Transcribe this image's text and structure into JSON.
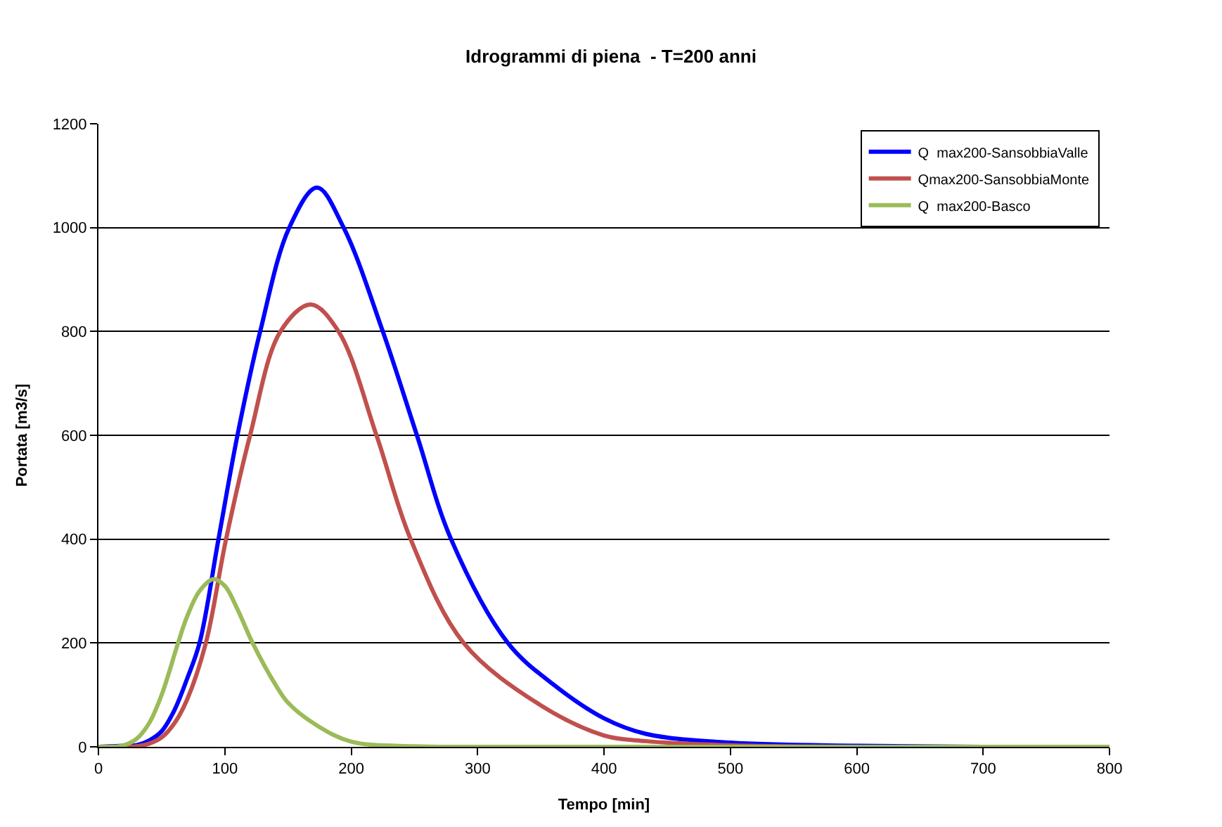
{
  "chart_data": {
    "type": "line",
    "title": "Idrogrammi di piena  - T=200 anni",
    "xlabel": "Tempo [min]",
    "ylabel": "Portata [m3/s]",
    "xlim": [
      0,
      800
    ],
    "xticks": [
      0,
      100,
      200,
      300,
      400,
      500,
      600,
      700,
      800
    ],
    "ylim": [
      0,
      1200
    ],
    "yticks": [
      0,
      200,
      400,
      600,
      800,
      1000,
      1200
    ],
    "grid": "y",
    "legend": "top right",
    "line_style": "solid",
    "marker": "none",
    "series": [
      {
        "name": "Q  max200-SansobbiaValle",
        "color": "#0000ff",
        "x": [
          0,
          20,
          30,
          40,
          50,
          60,
          70,
          80,
          95,
          110,
          128,
          151,
          173,
          194,
          225,
          252,
          279,
          324,
          360,
          400,
          433,
          500,
          600,
          700,
          800
        ],
        "values": [
          0,
          2,
          3,
          12,
          30,
          70,
          130,
          200,
          400,
          600,
          800,
          1000,
          1077,
          1000,
          800,
          600,
          400,
          200,
          120,
          55,
          25,
          8,
          2,
          0,
          0
        ]
      },
      {
        "name": "Qmax200-SansobbiaMonte",
        "color": "#c0504d",
        "x": [
          0,
          20,
          30,
          40,
          50,
          60,
          70,
          85,
          101,
          120,
          144,
          168,
          190,
          220,
          247,
          289,
          350,
          400,
          433,
          500,
          600
        ],
        "values": [
          0,
          0,
          1,
          6,
          18,
          45,
          90,
          200,
          400,
          600,
          800,
          852,
          800,
          600,
          400,
          200,
          80,
          22,
          11,
          3,
          0
        ]
      },
      {
        "name": "Q  max200-Basco",
        "color": "#9bbb59",
        "x": [
          0,
          10,
          20,
          30,
          40,
          50,
          63,
          70,
          80,
          91,
          100,
          110,
          122,
          140,
          150,
          173,
          200,
          250,
          300,
          400,
          500,
          600,
          700,
          800
        ],
        "values": [
          0,
          0,
          3,
          15,
          45,
          100,
          200,
          250,
          300,
          323,
          310,
          265,
          200,
          120,
          85,
          41,
          10,
          1,
          0,
          0,
          0,
          0,
          0,
          0
        ]
      }
    ]
  }
}
